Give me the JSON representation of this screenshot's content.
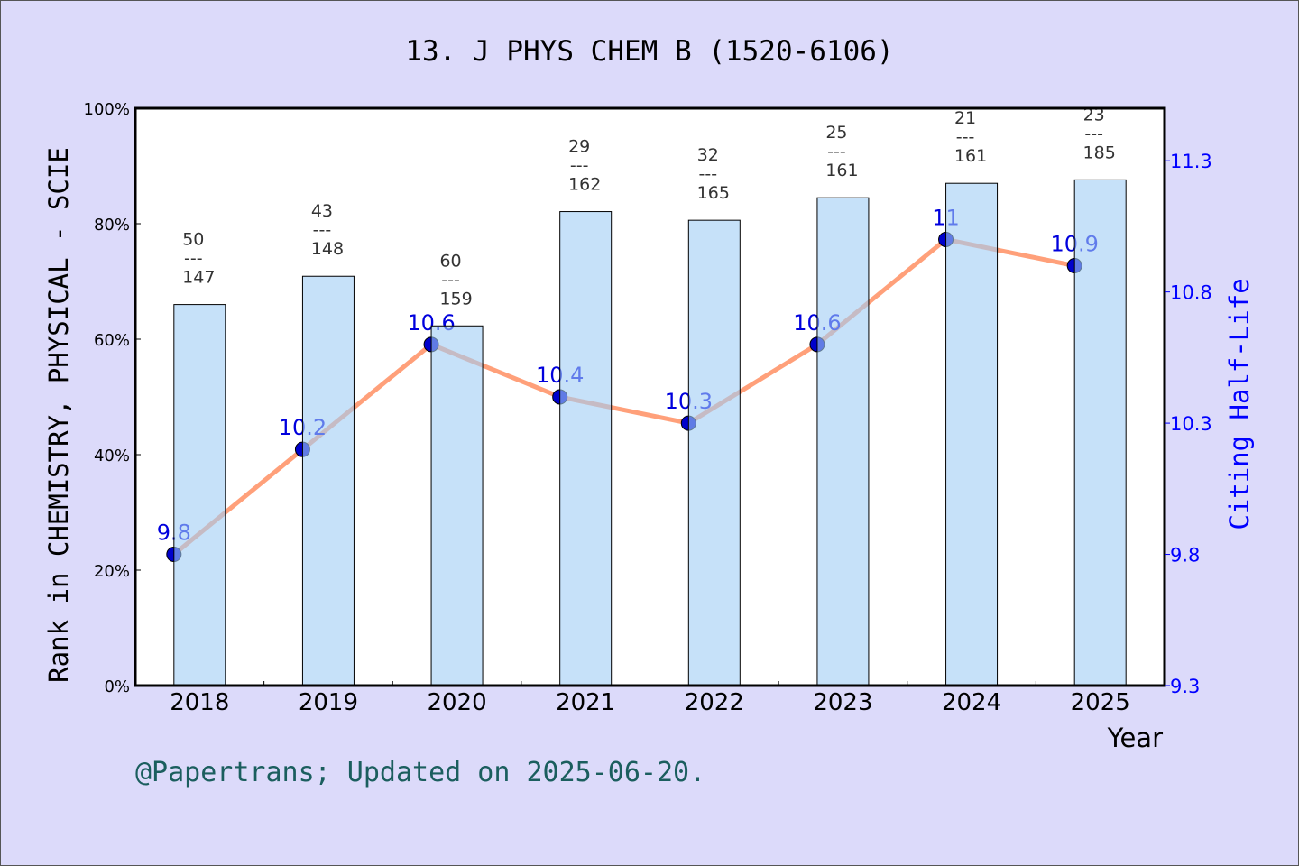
{
  "chart_data": {
    "type": "bar",
    "title": "13. J PHYS CHEM B (1520-6106)",
    "xlabel": "Year",
    "ylabel": "Rank in CHEMISTRY, PHYSICAL - SCIE",
    "y2label": "Citing Half-Life",
    "categories": [
      "2018",
      "2019",
      "2020",
      "2021",
      "2022",
      "2023",
      "2024",
      "2025"
    ],
    "ylim": [
      0,
      100
    ],
    "yticks": [
      "0%",
      "20%",
      "40%",
      "60%",
      "80%",
      "100%"
    ],
    "y2lim": [
      9.3,
      11.5
    ],
    "y2ticks": [
      "9.3",
      "9.8",
      "10.3",
      "10.8",
      "11.3"
    ],
    "grid": false,
    "bars": {
      "rank": [
        50,
        43,
        60,
        29,
        32,
        25,
        21,
        23
      ],
      "total": [
        147,
        148,
        159,
        162,
        165,
        161,
        161,
        185
      ],
      "values_percent": [
        66.0,
        70.9,
        62.3,
        82.1,
        80.6,
        84.5,
        87.0,
        87.6
      ],
      "color": "#c5e0f7"
    },
    "line": {
      "values": [
        9.8,
        10.2,
        10.6,
        10.4,
        10.3,
        10.6,
        11,
        10.9
      ],
      "labels": [
        "9.8",
        "10.2",
        "10.6",
        "10.4",
        "10.3",
        "10.6",
        "11",
        "10.9"
      ],
      "color": "#ffa07a",
      "marker_color": "#0000cc",
      "label_color": "#0000dd"
    }
  },
  "footer": "@Papertrans; Updated on 2025-06-20."
}
